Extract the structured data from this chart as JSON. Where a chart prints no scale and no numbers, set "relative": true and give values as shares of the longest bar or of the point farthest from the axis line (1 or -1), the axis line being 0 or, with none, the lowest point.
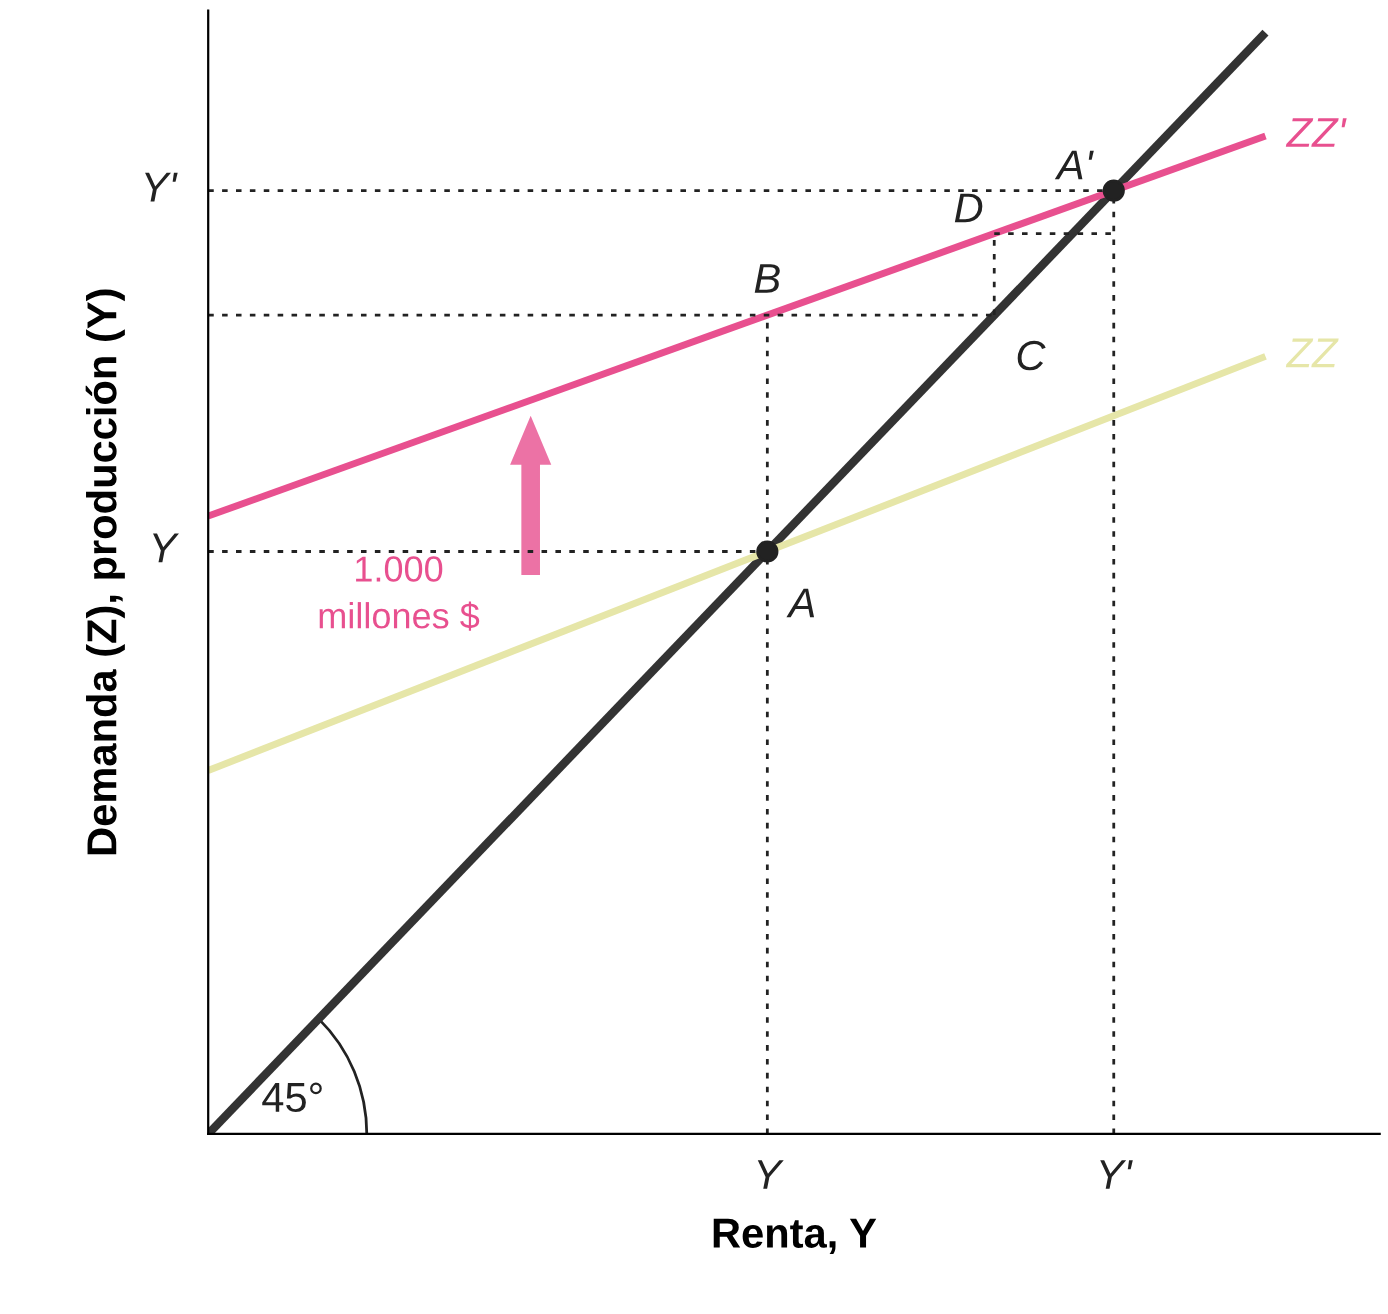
{
  "chart_data": {
    "type": "line",
    "relative": true,
    "xlabel": "Renta, Y",
    "ylabel": "Demanda (Z), producción (Y)",
    "categories": [
      null,
      null
    ],
    "series": [
      {
        "name": null,
        "color": "#333333",
        "values": [
          0,
          1
        ]
      },
      {
        "name": "ZZ",
        "color": "#e6e6a8",
        "values": [
          0.33,
          0.706
        ]
      },
      {
        "name": "ZZ'",
        "color": "#e8508f",
        "values": [
          0.561,
          0.906
        ]
      }
    ],
    "annotations": [
      "A",
      "A'",
      "B",
      "C",
      "D",
      "Y",
      "Y",
      "Y'",
      "Y'",
      "1.000\nmillones $",
      "45°"
    ]
  }
}
